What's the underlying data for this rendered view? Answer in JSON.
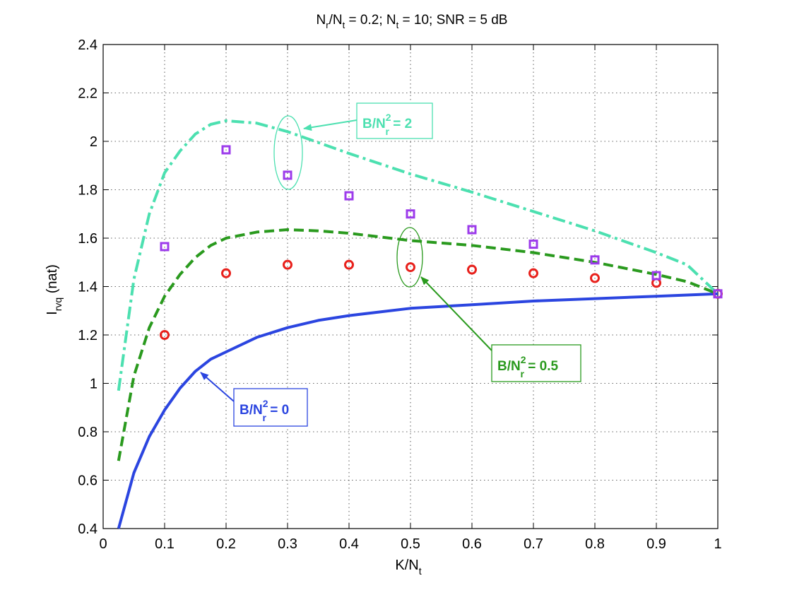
{
  "chart_data": {
    "type": "line",
    "title": "N_r/N_t = 0.2; N_t = 10; SNR = 5 dB",
    "title_parts": {
      "a": "N",
      "a_sub": "r",
      "b": "/N",
      "b_sub": "t",
      "c": " = 0.2; N",
      "c_sub": "t",
      "d": " = 10; SNR = 5 dB"
    },
    "xlabel": "K/N_t",
    "xlabel_parts": {
      "main": "K/N",
      "sub": "t"
    },
    "ylabel": "I_rvq (nat)",
    "ylabel_parts": {
      "main": "I",
      "sub": "rvq",
      "tail": " (nat)"
    },
    "xlim": [
      0,
      1
    ],
    "ylim": [
      0.4,
      2.4
    ],
    "xticks": [
      "0",
      "0.1",
      "0.2",
      "0.3",
      "0.4",
      "0.5",
      "0.6",
      "0.7",
      "0.8",
      "0.9",
      "1"
    ],
    "yticks": [
      "0.4",
      "0.6",
      "0.8",
      "1",
      "1.2",
      "1.4",
      "1.6",
      "1.8",
      "2",
      "2.2",
      "2.4"
    ],
    "grid": true,
    "series": [
      {
        "style": "solid",
        "color": "#2B45E0",
        "x": [
          0.025,
          0.05,
          0.075,
          0.1,
          0.125,
          0.15,
          0.175,
          0.2,
          0.25,
          0.3,
          0.35,
          0.4,
          0.5,
          0.6,
          0.7,
          0.8,
          0.9,
          1.0
        ],
        "y": [
          0.4,
          0.63,
          0.78,
          0.89,
          0.98,
          1.05,
          1.1,
          1.13,
          1.19,
          1.23,
          1.26,
          1.28,
          1.31,
          1.325,
          1.34,
          1.35,
          1.36,
          1.37
        ]
      },
      {
        "style": "dashed",
        "color": "#2A9A1E",
        "x": [
          0.025,
          0.05,
          0.075,
          0.1,
          0.125,
          0.15,
          0.175,
          0.2,
          0.25,
          0.3,
          0.35,
          0.4,
          0.5,
          0.6,
          0.7,
          0.8,
          0.9,
          0.95,
          1.0
        ],
        "y": [
          0.68,
          1.03,
          1.23,
          1.36,
          1.45,
          1.52,
          1.57,
          1.6,
          1.625,
          1.635,
          1.63,
          1.62,
          1.59,
          1.57,
          1.54,
          1.5,
          1.45,
          1.42,
          1.37
        ]
      },
      {
        "style": "dashdot",
        "color": "#4CE0B0",
        "x": [
          0.025,
          0.05,
          0.075,
          0.1,
          0.125,
          0.15,
          0.175,
          0.2,
          0.25,
          0.3,
          0.35,
          0.4,
          0.5,
          0.6,
          0.7,
          0.8,
          0.9,
          0.95,
          1.0
        ],
        "y": [
          0.97,
          1.43,
          1.7,
          1.87,
          1.96,
          2.03,
          2.07,
          2.085,
          2.075,
          2.04,
          1.995,
          1.95,
          1.865,
          1.79,
          1.71,
          1.63,
          1.54,
          1.49,
          1.37
        ]
      },
      {
        "style": "circle-markers",
        "color": "#E8211C",
        "x": [
          0.1,
          0.2,
          0.3,
          0.4,
          0.5,
          0.6,
          0.7,
          0.8,
          0.9,
          1.0
        ],
        "y": [
          1.2,
          1.455,
          1.49,
          1.49,
          1.48,
          1.47,
          1.455,
          1.435,
          1.415,
          1.37
        ]
      },
      {
        "style": "square-markers",
        "color": "#9C3BEB",
        "x": [
          0.1,
          0.2,
          0.3,
          0.4,
          0.5,
          0.6,
          0.7,
          0.8,
          0.9,
          1.0
        ],
        "y": [
          1.565,
          1.965,
          1.86,
          1.775,
          1.7,
          1.635,
          1.575,
          1.51,
          1.445,
          1.37
        ]
      }
    ],
    "annotations": [
      {
        "label": "B/N_r^2 = 2",
        "main": "B/N",
        "sub": "r",
        "sup": "2",
        "tail": " = 2",
        "color": "#4CE0B0"
      },
      {
        "label": "B/N_r^2 = 0.5",
        "main": "B/N",
        "sub": "r",
        "sup": "2",
        "tail": " = 0.5",
        "color": "#2A9A1E"
      },
      {
        "label": "B/N_r^2 = 0",
        "main": "B/N",
        "sub": "r",
        "sup": "2",
        "tail": " = 0",
        "color": "#2B45E0"
      }
    ]
  }
}
